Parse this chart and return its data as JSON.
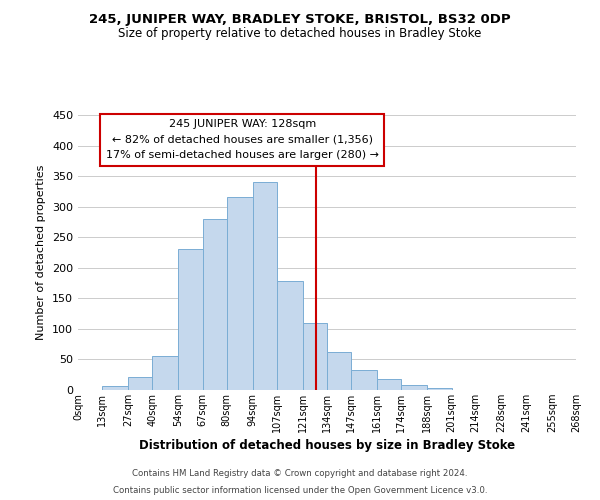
{
  "title": "245, JUNIPER WAY, BRADLEY STOKE, BRISTOL, BS32 0DP",
  "subtitle": "Size of property relative to detached houses in Bradley Stoke",
  "xlabel": "Distribution of detached houses by size in Bradley Stoke",
  "ylabel": "Number of detached properties",
  "bar_left_edges": [
    0,
    13,
    27,
    40,
    54,
    67,
    80,
    94,
    107,
    121,
    134,
    147,
    161,
    174,
    188,
    201,
    214,
    228,
    241,
    255
  ],
  "bar_widths": [
    13,
    14,
    13,
    14,
    13,
    13,
    14,
    13,
    14,
    13,
    13,
    14,
    13,
    14,
    13,
    13,
    14,
    13,
    14,
    13
  ],
  "bar_heights": [
    0,
    7,
    22,
    55,
    230,
    280,
    315,
    340,
    178,
    110,
    62,
    33,
    18,
    8,
    3,
    0,
    0,
    0,
    0,
    0
  ],
  "bar_color": "#c5d8ed",
  "bar_edgecolor": "#7aadd4",
  "tick_labels": [
    "0sqm",
    "13sqm",
    "27sqm",
    "40sqm",
    "54sqm",
    "67sqm",
    "80sqm",
    "94sqm",
    "107sqm",
    "121sqm",
    "134sqm",
    "147sqm",
    "161sqm",
    "174sqm",
    "188sqm",
    "201sqm",
    "214sqm",
    "228sqm",
    "241sqm",
    "255sqm",
    "268sqm"
  ],
  "tick_positions": [
    0,
    13,
    27,
    40,
    54,
    67,
    80,
    94,
    107,
    121,
    134,
    147,
    161,
    174,
    188,
    201,
    214,
    228,
    241,
    255,
    268
  ],
  "vline_x": 128,
  "vline_color": "#cc0000",
  "ylim": [
    0,
    450
  ],
  "xlim": [
    0,
    268
  ],
  "annotation_title": "245 JUNIPER WAY: 128sqm",
  "annotation_line1": "← 82% of detached houses are smaller (1,356)",
  "annotation_line2": "17% of semi-detached houses are larger (280) →",
  "grid_color": "#cccccc",
  "footnote1": "Contains HM Land Registry data © Crown copyright and database right 2024.",
  "footnote2": "Contains public sector information licensed under the Open Government Licence v3.0."
}
